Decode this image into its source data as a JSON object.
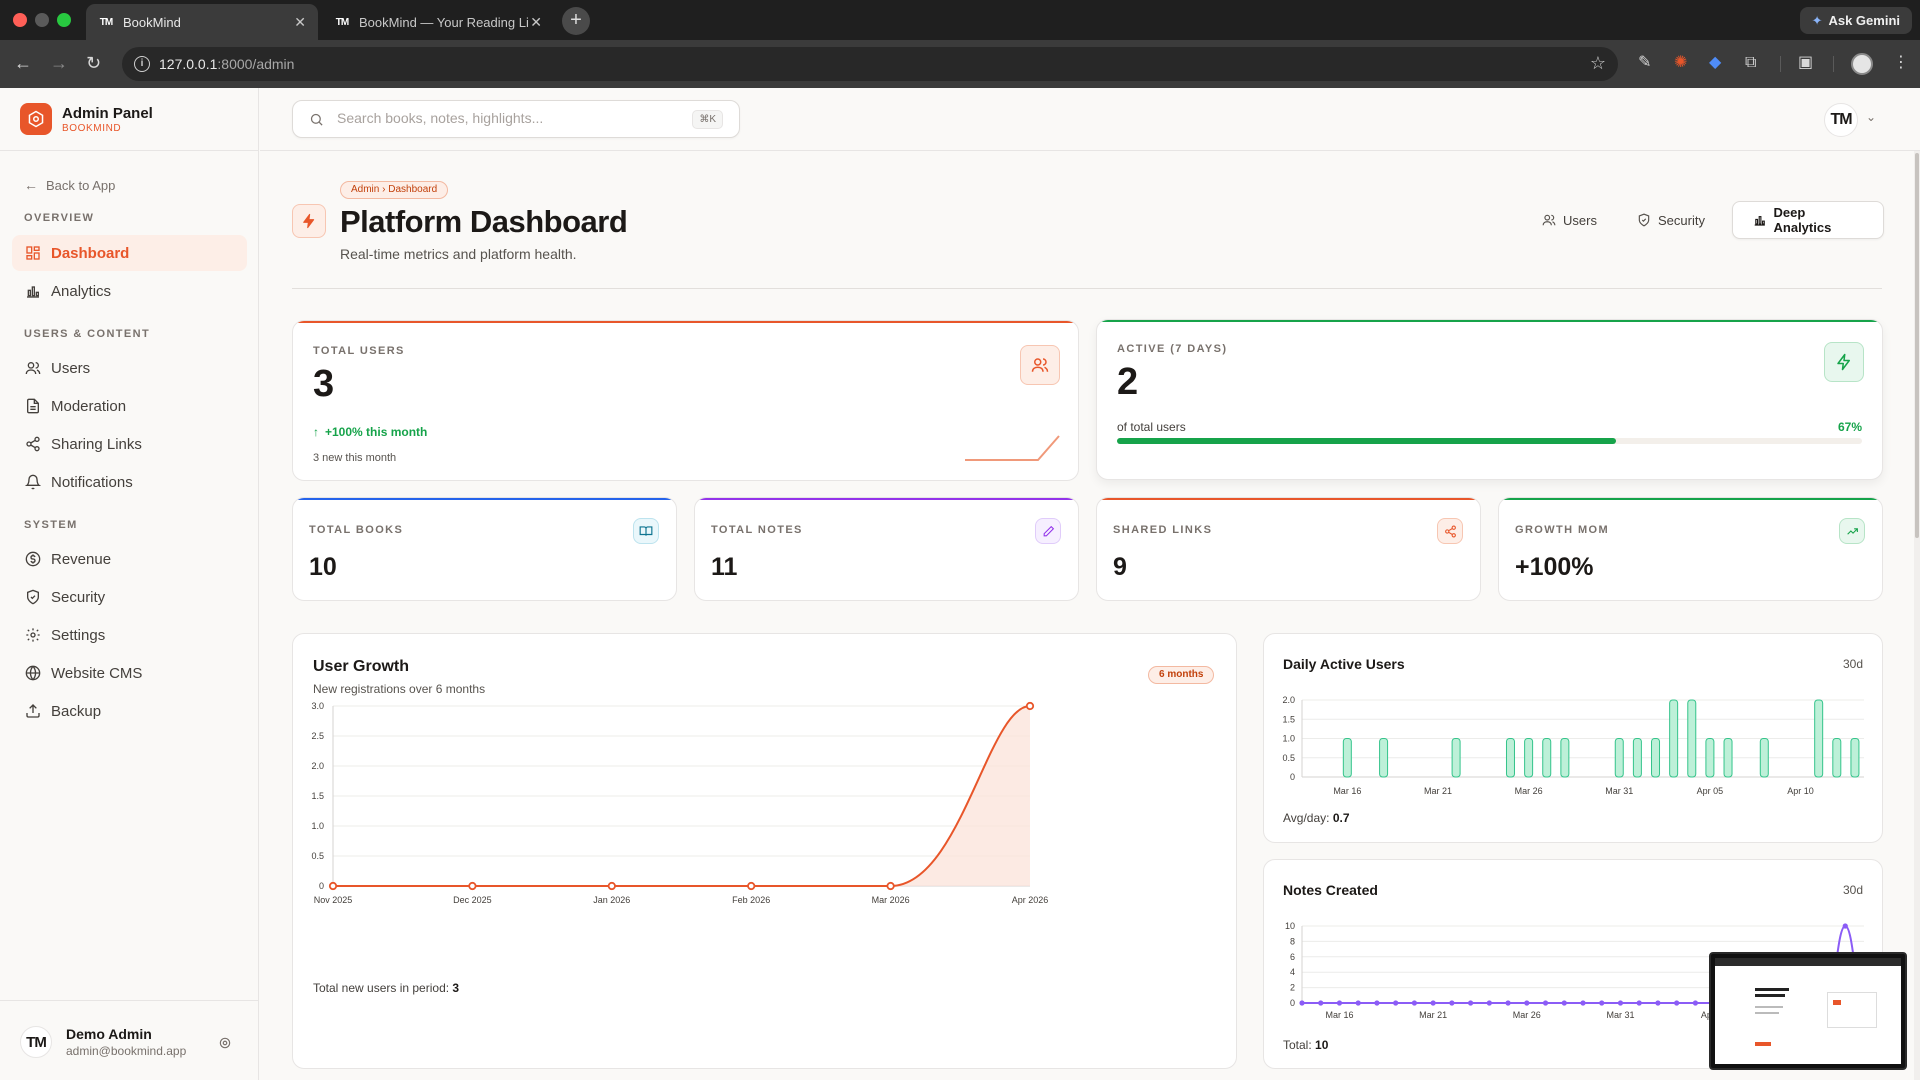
{
  "browser": {
    "tabs": [
      {
        "favicon": "TM",
        "title": "BookMind",
        "active": true
      },
      {
        "favicon": "TM",
        "title": "BookMind — Your Reading Lif",
        "active": false
      }
    ],
    "address_host": "127.0.0.1",
    "address_rest": ":8000/admin",
    "gemini_label": "Ask Gemini"
  },
  "sidebar": {
    "brand_title": "Admin Panel",
    "brand_sub": "BOOKMIND",
    "back_label": "Back to App",
    "sections": [
      {
        "label": "OVERVIEW",
        "items": [
          {
            "label": "Dashboard",
            "icon": "dashboard-icon",
            "active": true
          },
          {
            "label": "Analytics",
            "icon": "bar-chart-icon",
            "active": false
          }
        ]
      },
      {
        "label": "USERS & CONTENT",
        "items": [
          {
            "label": "Users",
            "icon": "users-icon",
            "active": false
          },
          {
            "label": "Moderation",
            "icon": "document-icon",
            "active": false
          },
          {
            "label": "Sharing Links",
            "icon": "share-icon",
            "active": false
          },
          {
            "label": "Notifications",
            "icon": "bell-icon",
            "active": false
          }
        ]
      },
      {
        "label": "SYSTEM",
        "items": [
          {
            "label": "Revenue",
            "icon": "dollar-icon",
            "active": false
          },
          {
            "label": "Security",
            "icon": "shield-icon",
            "active": false
          },
          {
            "label": "Settings",
            "icon": "gear-icon",
            "active": false
          },
          {
            "label": "Website CMS",
            "icon": "globe-icon",
            "active": false
          },
          {
            "label": "Backup",
            "icon": "upload-icon",
            "active": false
          }
        ]
      }
    ],
    "user": {
      "initials": "TM",
      "name": "Demo Admin",
      "email": "admin@bookmind.app"
    }
  },
  "header": {
    "search_placeholder": "Search books, notes, highlights...",
    "search_shortcut": "⌘K",
    "avatar_initials": "TM"
  },
  "page": {
    "breadcrumb": "Admin › Dashboard",
    "title": "Platform Dashboard",
    "subtitle": "Real-time metrics and platform health.",
    "actions": {
      "users": "Users",
      "security": "Security",
      "deep_analytics": "Deep Analytics"
    }
  },
  "stats": {
    "total_users": {
      "label": "TOTAL USERS",
      "value": "3",
      "trend": "+100% this month",
      "sub": "3 new this month"
    },
    "active_7d": {
      "label": "ACTIVE (7 DAYS)",
      "value": "2",
      "caption": "of total users",
      "percent_label": "67%",
      "percent": 67
    },
    "total_books": {
      "label": "TOTAL BOOKS",
      "value": "10"
    },
    "total_notes": {
      "label": "TOTAL NOTES",
      "value": "11"
    },
    "shared_links": {
      "label": "SHARED LINKS",
      "value": "9"
    },
    "growth_mom": {
      "label": "GROWTH MOM",
      "value": "+100%"
    }
  },
  "colors": {
    "accent": "#e8562a",
    "green": "#16a34a",
    "blue": "#2563eb",
    "purple": "#9333ea",
    "teal_bar": "#6ee7b7",
    "notes_line": "#8b5cf6"
  },
  "chart_data": [
    {
      "id": "user_growth",
      "type": "area",
      "title": "User Growth",
      "subtitle": "New registrations over 6 months",
      "badge": "6 months",
      "categories": [
        "Nov 2025",
        "Dec 2025",
        "Jan 2026",
        "Feb 2026",
        "Mar 2026",
        "Apr 2026"
      ],
      "values": [
        0,
        0,
        0,
        0,
        0,
        3
      ],
      "ylim": [
        0,
        3
      ],
      "yticks": [
        "0",
        "0.5",
        "1.0",
        "1.5",
        "2.0",
        "2.5",
        "3.0"
      ],
      "grid": true,
      "footer_label": "Total new users in period:",
      "footer_value": "3"
    },
    {
      "id": "daily_active_users",
      "type": "bar",
      "title": "Daily Active Users",
      "range_label": "30d",
      "x": [
        "Mar 14",
        "Mar 15",
        "Mar 16",
        "Mar 17",
        "Mar 18",
        "Mar 19",
        "Mar 20",
        "Mar 21",
        "Mar 22",
        "Mar 23",
        "Mar 24",
        "Mar 25",
        "Mar 26",
        "Mar 27",
        "Mar 28",
        "Mar 29",
        "Mar 30",
        "Mar 31",
        "Apr 01",
        "Apr 02",
        "Apr 03",
        "Apr 04",
        "Apr 05",
        "Apr 06",
        "Apr 07",
        "Apr 08",
        "Apr 09",
        "Apr 10",
        "Apr 11",
        "Apr 12",
        "Apr 13"
      ],
      "values": [
        0,
        0,
        1,
        0,
        1,
        0,
        0,
        0,
        1,
        0,
        0,
        1,
        1,
        1,
        1,
        0,
        0,
        1,
        1,
        1,
        2,
        2,
        1,
        1,
        0,
        1,
        0,
        0,
        2,
        1,
        1
      ],
      "xtick_labels": [
        "Mar 16",
        "Mar 21",
        "Mar 26",
        "Mar 31",
        "Apr 05",
        "Apr 10"
      ],
      "ylim": [
        0,
        2
      ],
      "yticks": [
        "0",
        "0.5",
        "1.0",
        "1.5",
        "2.0"
      ],
      "grid": true,
      "footer_label": "Avg/day:",
      "footer_value": "0.7"
    },
    {
      "id": "notes_created",
      "type": "line",
      "title": "Notes Created",
      "range_label": "30d",
      "x": [
        "Mar 14",
        "Mar 15",
        "Mar 16",
        "Mar 17",
        "Mar 18",
        "Mar 19",
        "Mar 20",
        "Mar 21",
        "Mar 22",
        "Mar 23",
        "Mar 24",
        "Mar 25",
        "Mar 26",
        "Mar 27",
        "Mar 28",
        "Mar 29",
        "Mar 30",
        "Mar 31",
        "Apr 01",
        "Apr 02",
        "Apr 03",
        "Apr 04",
        "Apr 05",
        "Apr 06",
        "Apr 07",
        "Apr 08",
        "Apr 09",
        "Apr 10",
        "Apr 11",
        "Apr 12",
        "Apr 13"
      ],
      "values": [
        0,
        0,
        0,
        0,
        0,
        0,
        0,
        0,
        0,
        0,
        0,
        0,
        0,
        0,
        0,
        0,
        0,
        0,
        0,
        0,
        0,
        0,
        0,
        0,
        0,
        0,
        0,
        0,
        0,
        10,
        0
      ],
      "xtick_labels": [
        "Mar 16",
        "Mar 21",
        "Mar 26",
        "Mar 31",
        "Apr 05"
      ],
      "ylim": [
        0,
        10
      ],
      "yticks": [
        "0",
        "2",
        "4",
        "6",
        "8",
        "10"
      ],
      "grid": true,
      "footer_label": "Total:",
      "footer_value": "10"
    }
  ]
}
